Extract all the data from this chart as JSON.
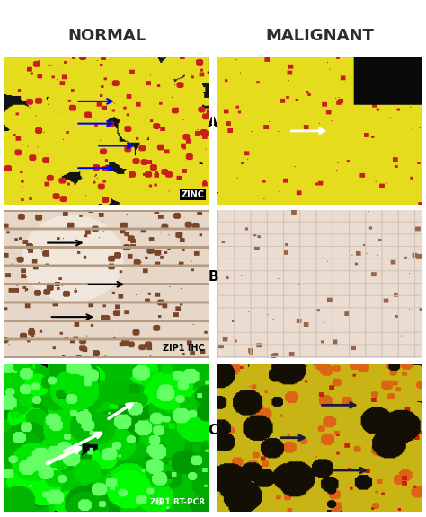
{
  "title_normal": "NORMAL",
  "title_malignant": "MALIGNANT",
  "label_A": "A",
  "label_B": "B",
  "label_C": "C",
  "label_zinc": "ZINC",
  "label_zip1_ihc": "ZIP1 IHC",
  "label_zip1_rtpcr": "ZIP1 RT-PCR",
  "bg_color": "#ffffff",
  "header_color": "#2d2d2d",
  "fig_width": 4.74,
  "fig_height": 5.76,
  "dpi": 100
}
